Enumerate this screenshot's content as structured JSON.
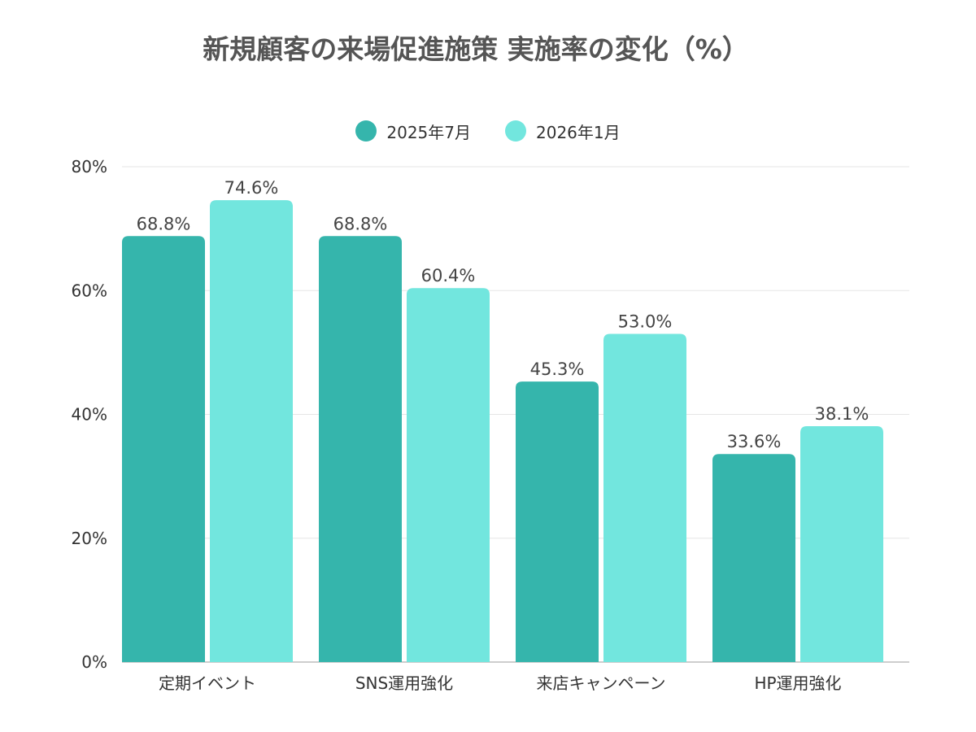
{
  "chart_data": {
    "type": "bar",
    "title": "新規顧客の来場促進施策 実施率の変化（%）",
    "categories": [
      "定期イベント",
      "SNS運用強化",
      "来店キャンペーン",
      "HP運用強化"
    ],
    "series": [
      {
        "name": "2025年7月",
        "values": [
          68.8,
          68.8,
          45.3,
          33.6
        ],
        "labels": [
          "68.8%",
          "68.8%",
          "45.3%",
          "33.6%"
        ],
        "color": "#35b5ac"
      },
      {
        "name": "2026年1月",
        "values": [
          74.6,
          60.4,
          53.0,
          38.1
        ],
        "labels": [
          "74.6%",
          "60.4%",
          "53.0%",
          "38.1%"
        ],
        "color": "#72e6de"
      }
    ],
    "ylim": [
      0,
      80
    ],
    "yticks": [
      0,
      20,
      40,
      60,
      80
    ],
    "ytick_labels": [
      "0%",
      "20%",
      "40%",
      "60%",
      "80%"
    ],
    "grid": true,
    "legend_position": "top-center",
    "xlabel": "",
    "ylabel": ""
  }
}
